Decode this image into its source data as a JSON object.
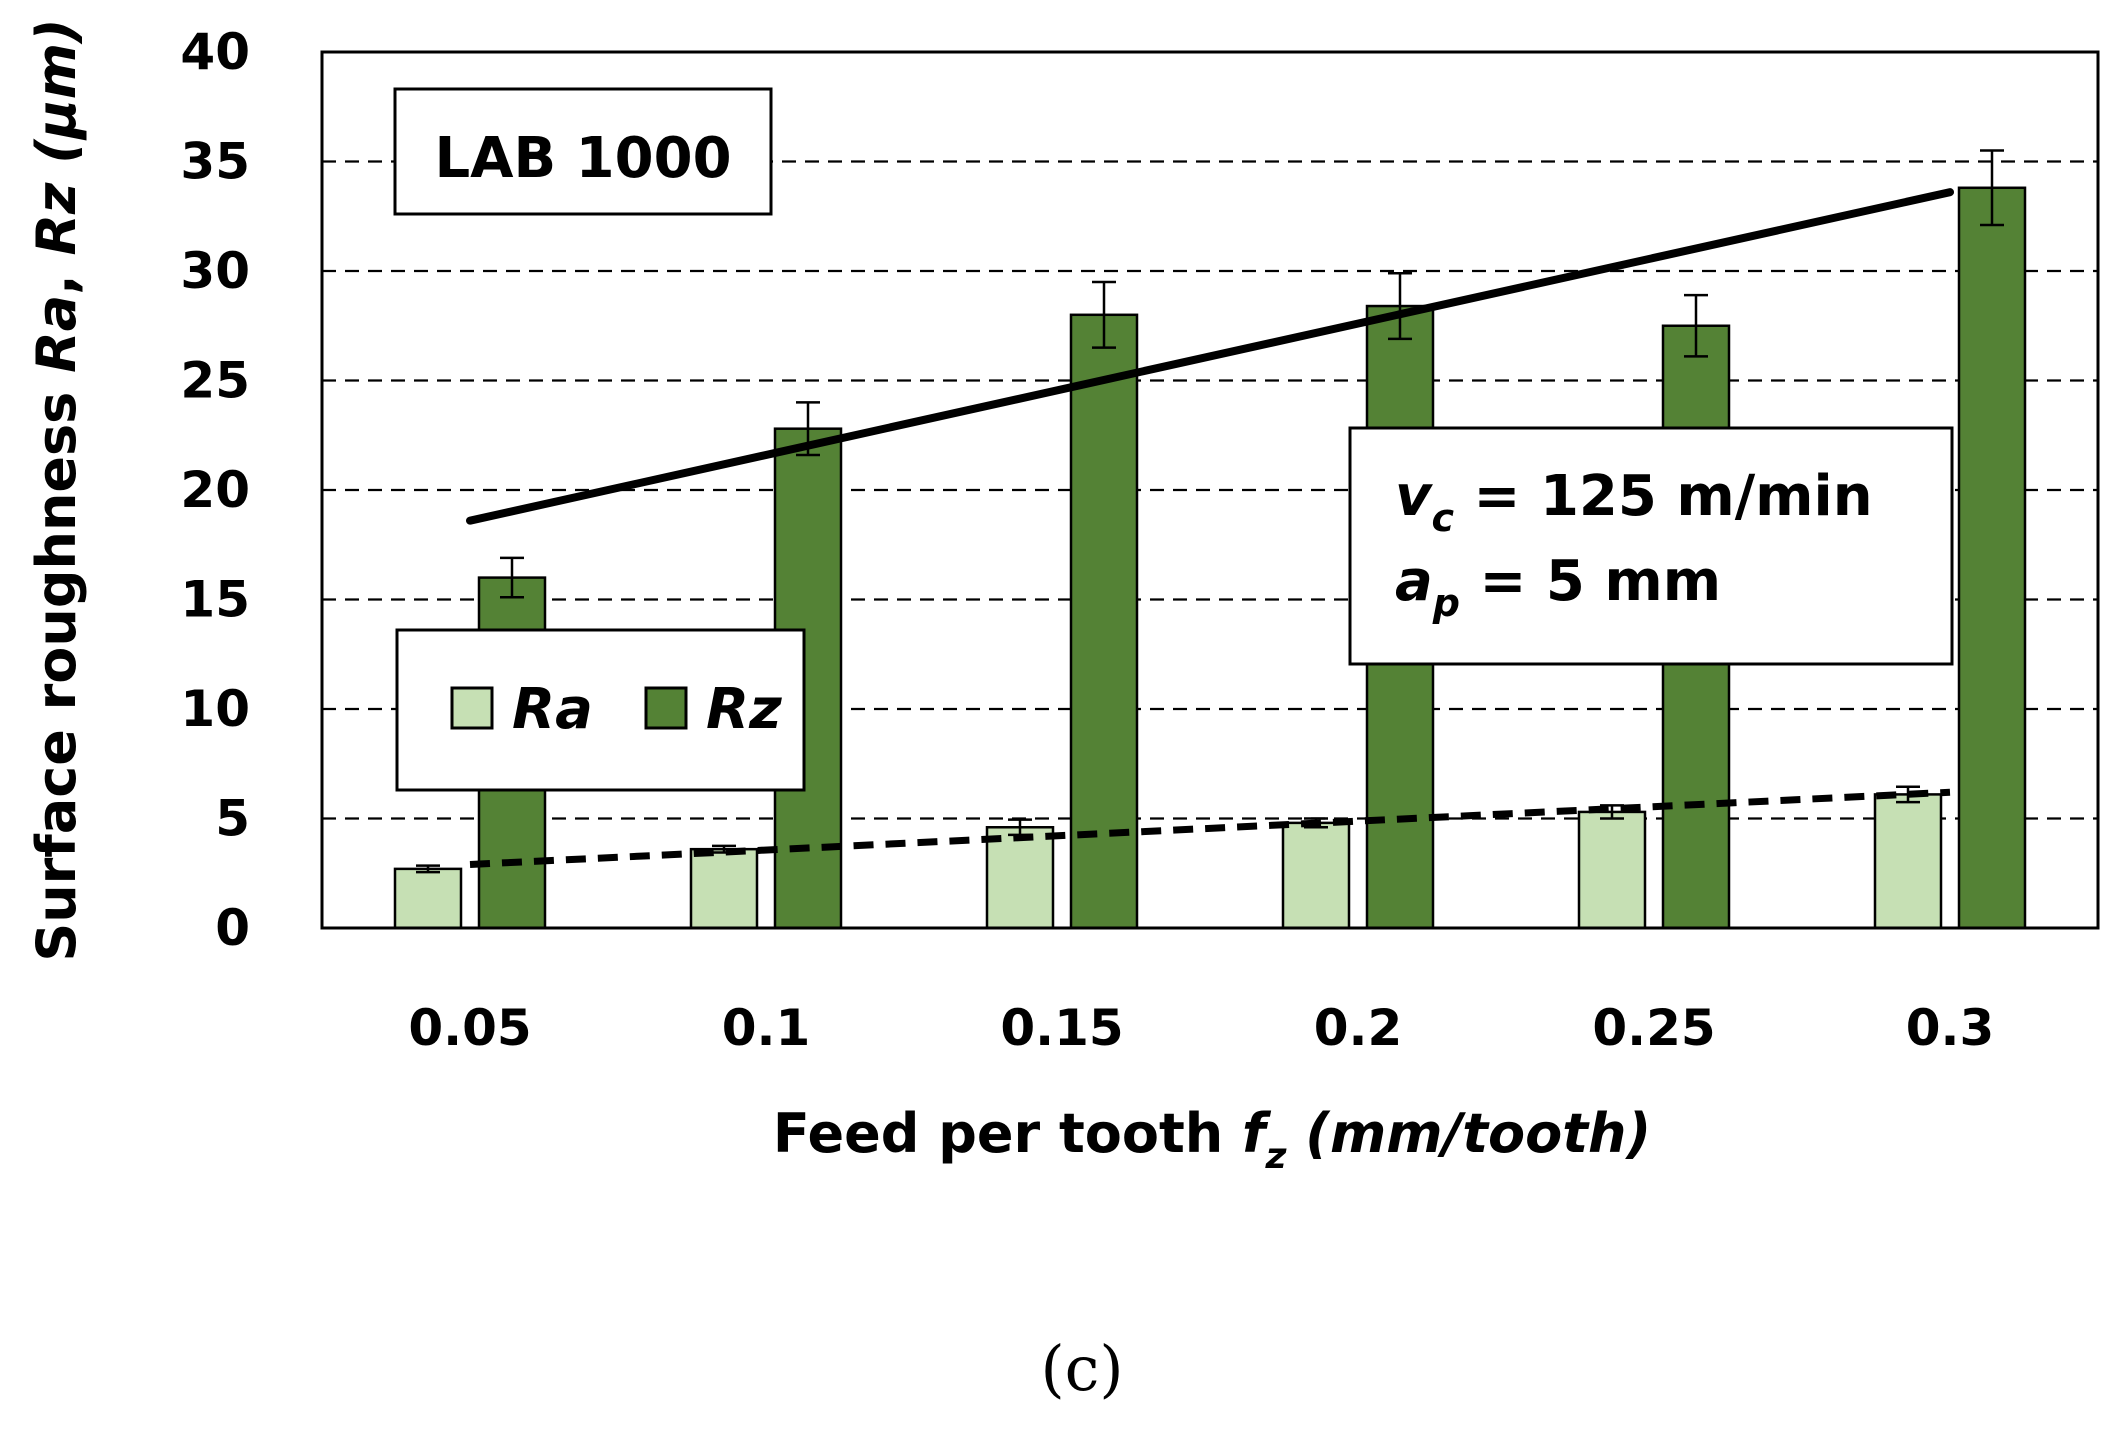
{
  "chart_data": {
    "type": "bar",
    "panel_label": "(c)",
    "categories": [
      "0.05",
      "0.1",
      "0.15",
      "0.2",
      "0.25",
      "0.3"
    ],
    "series": [
      {
        "name": "Ra",
        "color": "#c6e0b4",
        "values": [
          2.7,
          3.6,
          4.6,
          4.8,
          5.3,
          6.1
        ],
        "errors": [
          0.15,
          0.15,
          0.35,
          0.2,
          0.3,
          0.35
        ]
      },
      {
        "name": "Rz",
        "color": "#548235",
        "values": [
          16.0,
          22.8,
          28.0,
          28.4,
          27.5,
          33.8
        ],
        "errors": [
          0.9,
          1.2,
          1.5,
          1.5,
          1.4,
          1.7
        ]
      }
    ],
    "trendlines": [
      {
        "series": "Rz",
        "style": "solid",
        "from": [
          0.05,
          18.6
        ],
        "to": [
          0.3,
          33.6
        ]
      },
      {
        "series": "Ra",
        "style": "dashed",
        "from": [
          0.05,
          2.9
        ],
        "to": [
          0.3,
          6.2
        ]
      }
    ],
    "ylim": [
      0,
      40
    ],
    "yticks": [
      "0",
      "5",
      "10",
      "15",
      "20",
      "25",
      "30",
      "35",
      "40"
    ],
    "ytick_values": [
      0,
      5,
      10,
      15,
      20,
      25,
      30,
      35,
      40
    ],
    "grid": "horizontal dashed",
    "ylabel": {
      "prefix": "Surface roughness ",
      "var1": "Ra",
      "sep": ", ",
      "var2": "Rz",
      "unit": " (µm)"
    },
    "xlabel": {
      "prefix": "Feed per tooth ",
      "var": "f",
      "sub": "z",
      "unit": " (mm/tooth)"
    },
    "title_box": "LAB 1000",
    "params": {
      "vc_var": "v",
      "vc_sub": "c",
      "vc_value": " = 125 m/min",
      "ap_var": "a",
      "ap_sub": "p",
      "ap_value": " = 5 mm"
    },
    "legend": {
      "position": "lower-left",
      "entries": [
        "Ra",
        "Rz"
      ]
    }
  }
}
